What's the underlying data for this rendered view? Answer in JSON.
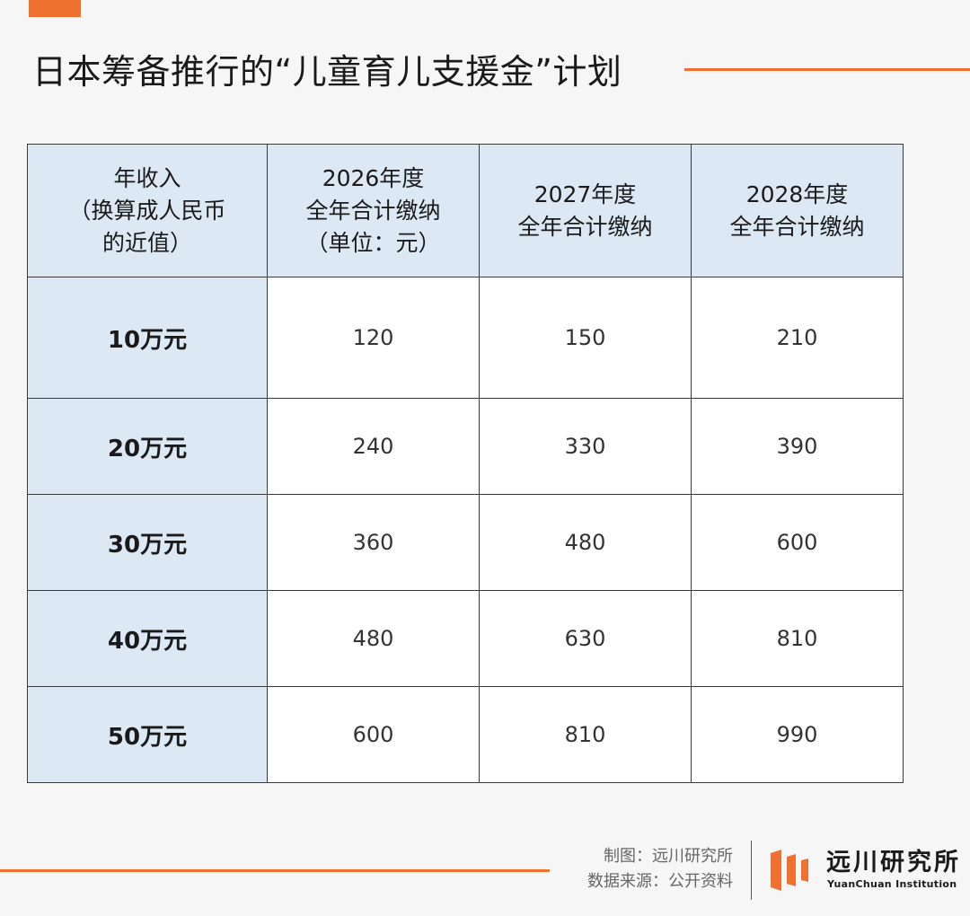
{
  "title": "日本筹备推行的“儿童育儿支援金”计划",
  "chart_data": {
    "type": "table",
    "columns": [
      [
        "年收入",
        "（换算成人民币",
        "的近值）"
      ],
      [
        "2026年度",
        "全年合计缴纳",
        "（单位：元）"
      ],
      [
        "2027年度",
        "全年合计缴纳"
      ],
      [
        "2028年度",
        "全年合计缴纳"
      ]
    ],
    "rows": [
      {
        "label": "10万元",
        "values": [
          "120",
          "150",
          "210"
        ]
      },
      {
        "label": "20万元",
        "values": [
          "240",
          "330",
          "390"
        ]
      },
      {
        "label": "30万元",
        "values": [
          "360",
          "480",
          "600"
        ]
      },
      {
        "label": "40万元",
        "values": [
          "480",
          "630",
          "810"
        ]
      },
      {
        "label": "50万元",
        "values": [
          "600",
          "810",
          "990"
        ]
      }
    ]
  },
  "footer": {
    "credit_line1": "制图：远川研究所",
    "credit_line2": "数据来源：公开资料",
    "brand_name": "远川研究所",
    "brand_en": "YuanChuan Institution"
  },
  "colors": {
    "accent": "#f07030",
    "header_bg": "#dde8f5",
    "background": "#f6f6f6",
    "cell_bg": "#ffffff"
  },
  "icons": {
    "logo": "yuanchuan-logo-icon"
  }
}
